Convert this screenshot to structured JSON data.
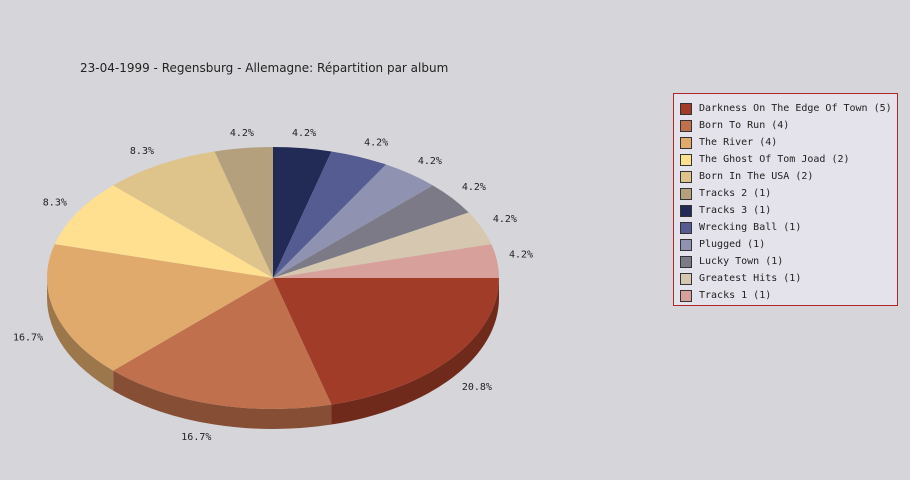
{
  "chart_data": {
    "type": "pie",
    "title": "23-04-1999 - Regensburg - Allemagne:  Répartition par album",
    "slices": [
      {
        "label": "Darkness On The Edge Of Town (5)",
        "value": 5,
        "pct_label": "20.8%",
        "color": "#a03c28"
      },
      {
        "label": "Born To Run (4)",
        "value": 4,
        "pct_label": "16.7%",
        "color": "#c0704c"
      },
      {
        "label": "The River (4)",
        "value": 4,
        "pct_label": "16.7%",
        "color": "#e0aa6c"
      },
      {
        "label": "The Ghost Of Tom Joad (2)",
        "value": 2,
        "pct_label": "8.3%",
        "color": "#fee090"
      },
      {
        "label": "Born In The USA (2)",
        "value": 2,
        "pct_label": "8.3%",
        "color": "#dec48a"
      },
      {
        "label": "Tracks 2 (1)",
        "value": 1,
        "pct_label": "4.2%",
        "color": "#b4a07c"
      },
      {
        "label": "Tracks 3 (1)",
        "value": 1,
        "pct_label": "4.2%",
        "color": "#222a56"
      },
      {
        "label": "Wrecking Ball (1)",
        "value": 1,
        "pct_label": "4.2%",
        "color": "#555c92"
      },
      {
        "label": "Plugged (1)",
        "value": 1,
        "pct_label": "4.2%",
        "color": "#9092b2"
      },
      {
        "label": "Lucky Town (1)",
        "value": 1,
        "pct_label": "4.2%",
        "color": "#7c7a86"
      },
      {
        "label": "Greatest Hits (1)",
        "value": 1,
        "pct_label": "4.2%",
        "color": "#d6c8b0"
      },
      {
        "label": "Tracks 1 (1)",
        "value": 1,
        "pct_label": "4.2%",
        "color": "#d8a09a"
      }
    ],
    "legend_position": "right"
  }
}
